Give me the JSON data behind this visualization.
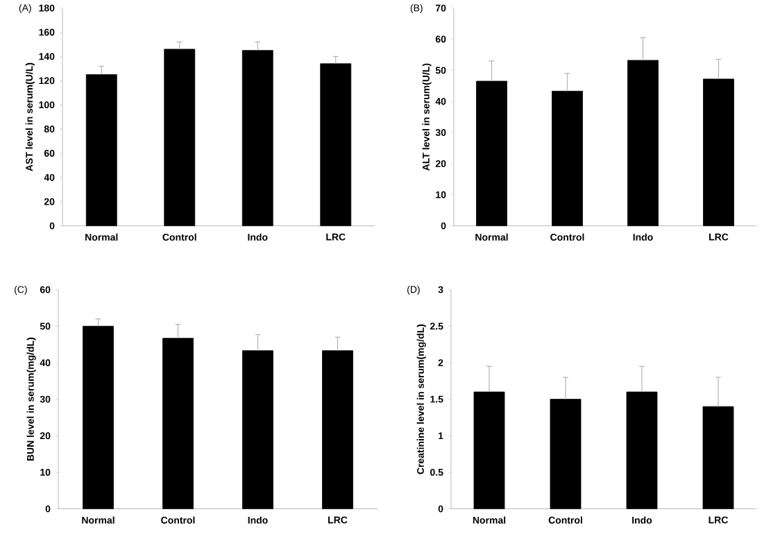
{
  "chart_data": [
    {
      "type": "bar",
      "title": "(A)",
      "ylabel": "AST level in serum(U/L)",
      "categories": [
        "Normal",
        "Control",
        "Indo",
        "LRC"
      ],
      "values": [
        125,
        146,
        145,
        134
      ],
      "errors": [
        [
          125,
          132
        ],
        [
          146,
          152
        ],
        [
          145,
          152
        ],
        [
          134,
          140
        ]
      ],
      "color": "#000000",
      "ylim": [
        0,
        180
      ],
      "yticks": [
        0,
        20,
        40,
        60,
        80,
        100,
        120,
        140,
        160,
        180
      ]
    },
    {
      "type": "bar",
      "title": "(B)",
      "ylabel": "ALT level in serum(U/L)",
      "categories": [
        "Normal",
        "Control",
        "Indo",
        "LRC"
      ],
      "values": [
        46.5,
        43.3,
        53.2,
        47.2
      ],
      "errors": [
        [
          46.5,
          53
        ],
        [
          43.3,
          49
        ],
        [
          53.2,
          60.5
        ],
        [
          47.2,
          53.5
        ]
      ],
      "color": "#000000",
      "ylim": [
        0,
        70
      ],
      "yticks": [
        0,
        10,
        20,
        30,
        40,
        50,
        60,
        70
      ]
    },
    {
      "type": "bar",
      "title": "(C)",
      "ylabel": "BUN level in serum(mg/dL)",
      "categories": [
        "Normal",
        "Control",
        "Indo",
        "LRC"
      ],
      "values": [
        50,
        46.7,
        43.3,
        43.3
      ],
      "errors": [
        [
          50,
          52
        ],
        [
          46.7,
          50.5
        ],
        [
          43.3,
          47.7
        ],
        [
          43.3,
          47
        ]
      ],
      "color": "#000000",
      "ylim": [
        0,
        60
      ],
      "yticks": [
        0,
        10,
        20,
        30,
        40,
        50,
        60
      ]
    },
    {
      "type": "bar",
      "title": "(D)",
      "ylabel": "Creatinine level in serum(mg/dL)",
      "categories": [
        "Normal",
        "Control",
        "Indo",
        "LRC"
      ],
      "values": [
        1.6,
        1.5,
        1.6,
        1.4
      ],
      "errors": [
        [
          1.6,
          1.95
        ],
        [
          1.5,
          1.8
        ],
        [
          1.6,
          1.95
        ],
        [
          1.4,
          1.8
        ]
      ],
      "color": "#000000",
      "ylim": [
        0,
        3
      ],
      "yticks": [
        0,
        0.5,
        1,
        1.5,
        2,
        2.5,
        3
      ]
    }
  ]
}
